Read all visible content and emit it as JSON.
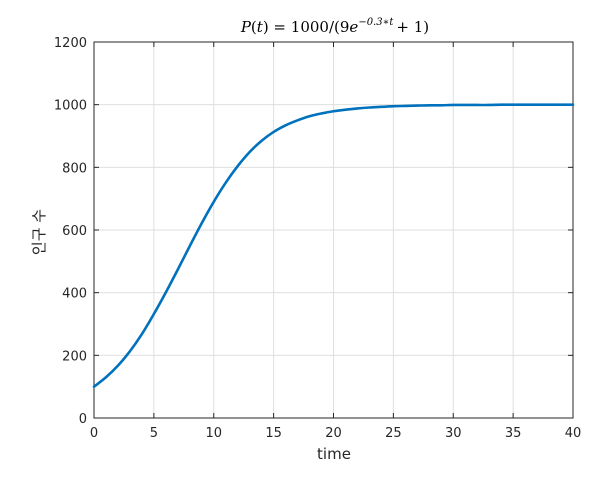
{
  "chart_data": {
    "type": "line",
    "title": {
      "lhs": "P",
      "arg": "t",
      "const": "1000",
      "coef": "9",
      "base": "e",
      "exponent": "−0.3∗t",
      "tail": "+ 1)"
    },
    "xlabel": "time",
    "ylabel": "인구 수",
    "xlim": [
      0,
      40
    ],
    "ylim": [
      0,
      1200
    ],
    "xticks": [
      0,
      5,
      10,
      15,
      20,
      25,
      30,
      35,
      40
    ],
    "yticks": [
      0,
      200,
      400,
      600,
      800,
      1000,
      1200
    ],
    "grid": true,
    "series": [
      {
        "color": "#0072BD",
        "x": [
          0,
          1,
          2,
          3,
          4,
          5,
          6,
          7,
          8,
          9,
          10,
          11,
          12,
          13,
          14,
          15,
          16,
          17,
          18,
          19,
          20,
          21,
          22,
          23,
          24,
          25,
          26,
          27,
          28,
          29,
          30,
          31,
          32,
          33,
          34,
          35,
          36,
          37,
          38,
          39,
          40
        ],
        "y": [
          100,
          130,
          167,
          213,
          268,
          332,
          401,
          474,
          549,
          622,
          690,
          751,
          804,
          849,
          885,
          913,
          934,
          950,
          963,
          972,
          979,
          984,
          988,
          991,
          993,
          995,
          996,
          997,
          998,
          998,
          999,
          999,
          999,
          999,
          1000,
          1000,
          1000,
          1000,
          1000,
          1000,
          1000
        ]
      }
    ]
  }
}
